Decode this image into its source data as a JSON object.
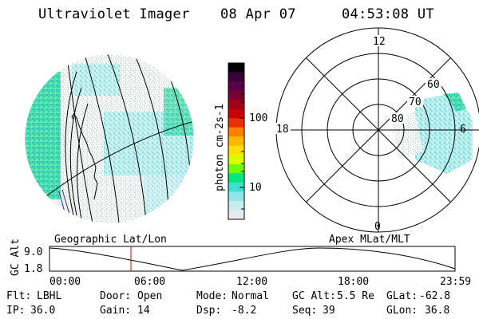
{
  "header": {
    "instrument": "Ultraviolet Imager",
    "date": "08 Apr 07",
    "time": "04:53:08 UT"
  },
  "left_panel": {
    "caption": "Geographic Lat/Lon"
  },
  "right_panel": {
    "caption": "Apex MLat/MLT",
    "mlt_labels": {
      "top": "12",
      "left": "18",
      "right": "6",
      "bottom": "0"
    },
    "lat_labels": [
      "60",
      "70",
      "80"
    ]
  },
  "colorbar": {
    "unit_label": "photon cm-2s-1",
    "ticks": [
      "100",
      "10"
    ],
    "colors": [
      "#000000",
      "#3a003a",
      "#5a004a",
      "#7a0030",
      "#a00018",
      "#c80008",
      "#e83000",
      "#ff8000",
      "#ffb800",
      "#ffe000",
      "#d8ff00",
      "#70ff00",
      "#00e87a",
      "#40e0d0",
      "#8ee8e8",
      "#c8ecec",
      "#e6eaea"
    ]
  },
  "timeline": {
    "y_label": "GC Alt",
    "y_ticks": [
      "9.0",
      "1.8"
    ],
    "x_ticks": [
      "00:00",
      "06:00",
      "12:00",
      "18:00",
      "23:59"
    ],
    "marker_color": "#e00000"
  },
  "info": {
    "filter_label": "Flt:",
    "filter_value": "LBHL",
    "door_label": "Door:",
    "door_value": "Open",
    "mode_label": "Mode:",
    "mode_value": "Normal",
    "gcalt_label": "GC Alt:",
    "gcalt_value": "5.5 Re",
    "glat_label": "GLat:",
    "glat_value": "-62.8",
    "ip_label": "IP:",
    "ip_value": "36.0",
    "gain_label": "Gain:",
    "gain_value": "14",
    "dsp_label": "Dsp:",
    "dsp_value": "-8.2",
    "seq_label": "Seq:",
    "seq_value": "39",
    "glon_label": "GLon:",
    "glon_value": "36.8"
  }
}
